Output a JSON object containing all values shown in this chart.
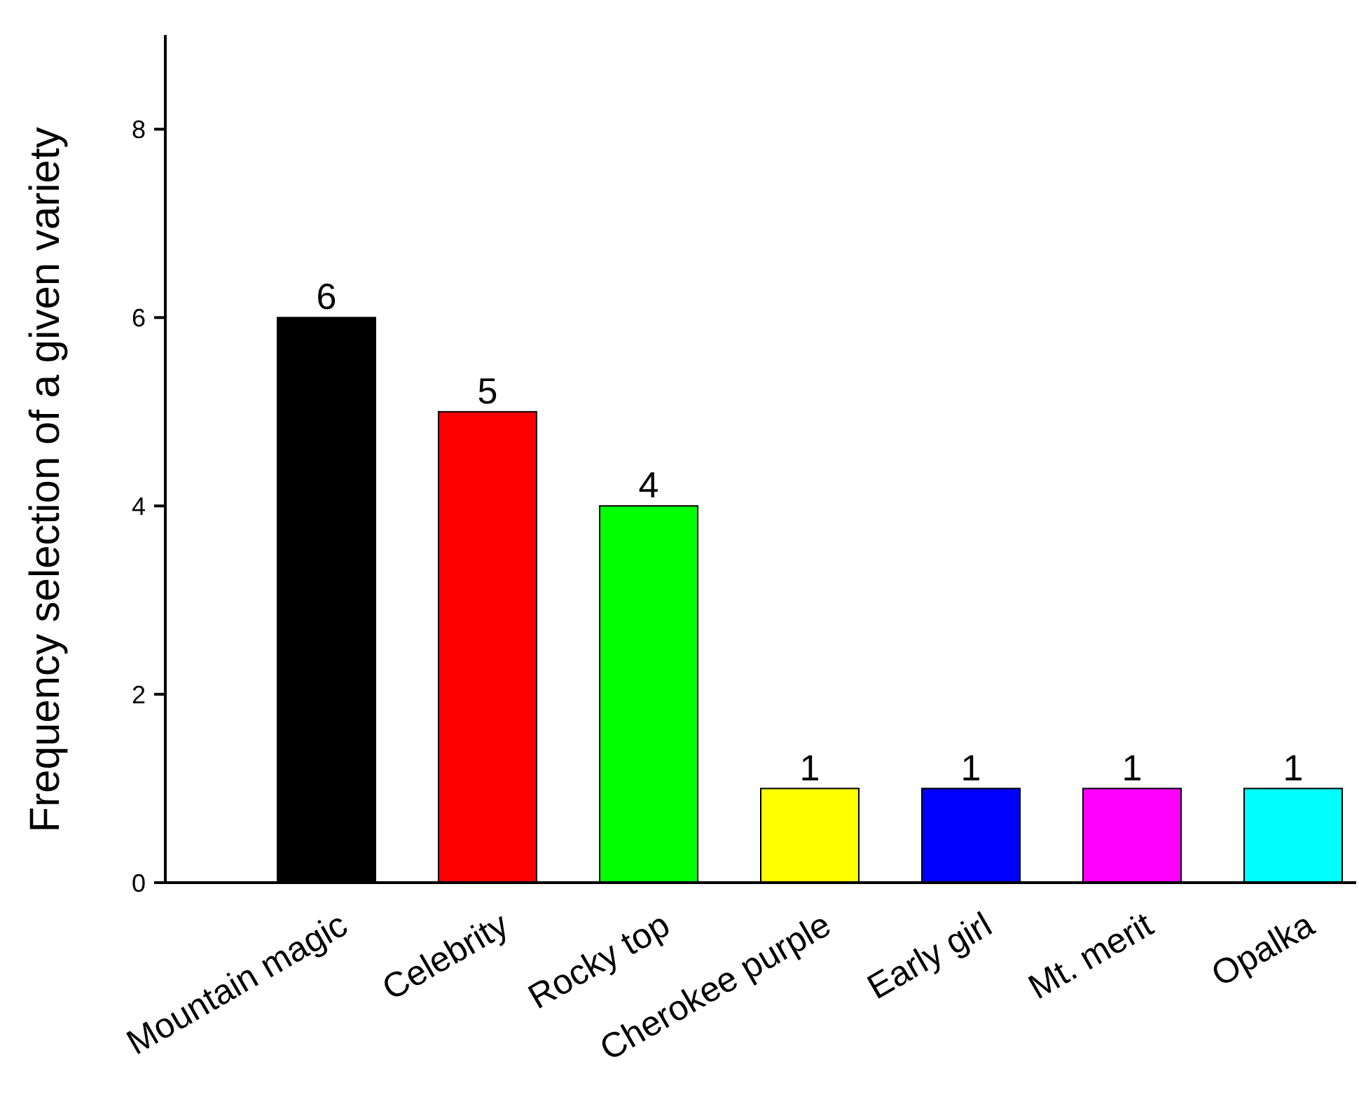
{
  "chart_data": {
    "type": "bar",
    "ylabel": "Frequency selection of a given variety",
    "categories": [
      "Mountain magic",
      "Celebrity",
      "Rocky top",
      "Cherokee purple",
      "Early girl",
      "Mt. merit",
      "Opalka"
    ],
    "values": [
      6,
      5,
      4,
      1,
      1,
      1,
      1
    ],
    "colors": [
      "#000000",
      "#ff0000",
      "#00ff00",
      "#ffff00",
      "#0000ff",
      "#ff00ff",
      "#00ffff"
    ],
    "ylim": [
      0,
      9
    ],
    "yticks": [
      0,
      2,
      4,
      6,
      8
    ],
    "data_labels": true,
    "grid": false
  }
}
